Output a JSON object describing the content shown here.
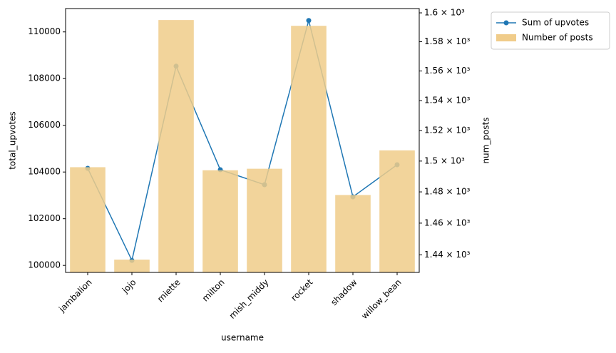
{
  "chart_data": {
    "type": "combo",
    "x_label": "username",
    "y_label": "total_upvotes",
    "y2_label": "num_posts",
    "categories": [
      "jambalion",
      "jojo",
      "miette",
      "milton",
      "mish_middy",
      "rocket",
      "shadow",
      "willow_bean"
    ],
    "series": [
      {
        "name": "Number of posts",
        "type": "bar",
        "axis": "y2",
        "color": "#f0cc8a",
        "values": [
          1496,
          1437,
          1595,
          1494,
          1495,
          1591,
          1478,
          1507
        ]
      },
      {
        "name": "Sum of upvotes",
        "type": "line",
        "color": "#1f77b4",
        "values": [
          104159,
          100214,
          108532,
          104098,
          103456,
          110489,
          102936,
          104312
        ]
      }
    ],
    "ylim": [
      99700,
      111000
    ],
    "yticks": [
      100000,
      102000,
      104000,
      106000,
      108000,
      110000
    ],
    "y2lim": [
      1429,
      1603
    ],
    "y2_log": true,
    "y2ticks": [
      {
        "value": 1440,
        "label": "1.44 × 10³"
      },
      {
        "value": 1460,
        "label": "1.46 × 10³"
      },
      {
        "value": 1480,
        "label": "1.48 × 10³"
      },
      {
        "value": 1500,
        "label": "1.5 × 10³"
      },
      {
        "value": 1520,
        "label": "1.52 × 10³"
      },
      {
        "value": 1540,
        "label": "1.54 × 10³"
      },
      {
        "value": 1560,
        "label": "1.56 × 10³"
      },
      {
        "value": 1580,
        "label": "1.58 × 10³"
      },
      {
        "value": 1600,
        "label": "1.6 × 10³"
      }
    ],
    "legend": "outside-upper-right",
    "legend_order": [
      1,
      0
    ]
  }
}
